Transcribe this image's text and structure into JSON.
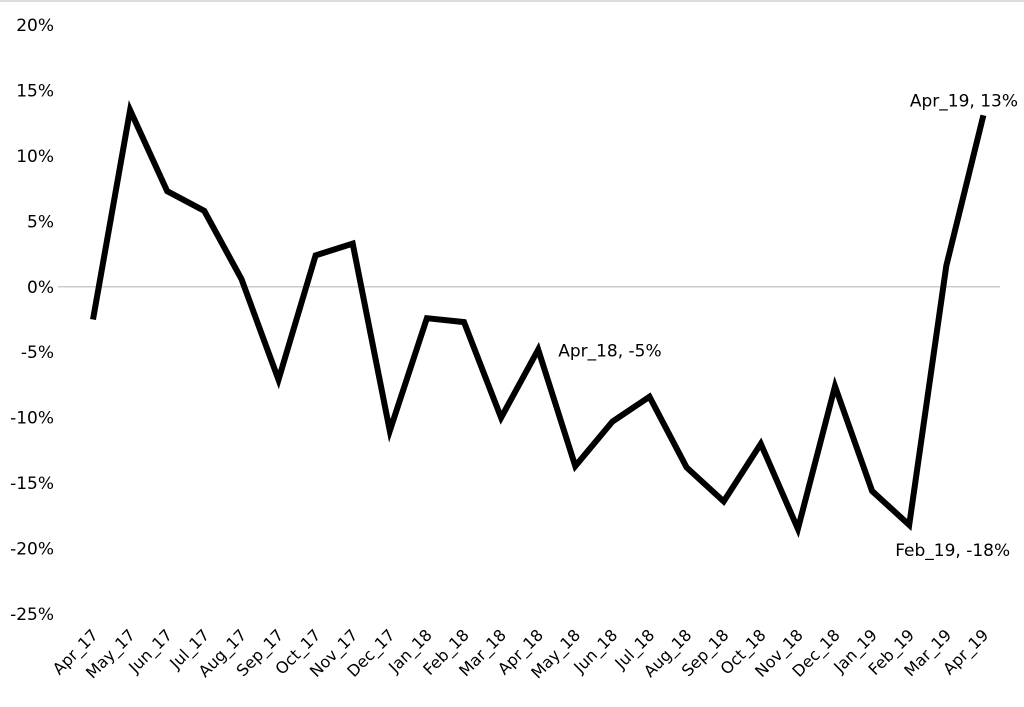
{
  "chart_data": {
    "type": "line",
    "title": "",
    "xlabel": "",
    "ylabel": "",
    "ylim": [
      -25,
      20
    ],
    "y_ticks": [
      "20%",
      "15%",
      "10%",
      "5%",
      "0%",
      "-5%",
      "-10%",
      "-15%",
      "-20%",
      "-25%"
    ],
    "y_tick_values": [
      20,
      15,
      10,
      5,
      0,
      -5,
      -10,
      -15,
      -20,
      -25
    ],
    "categories": [
      "Apr_17",
      "May_17",
      "Jun_17",
      "Jul_17",
      "Aug_17",
      "Sep_17",
      "Oct_17",
      "Nov_17",
      "Dec_17",
      "Jan_18",
      "Feb_18",
      "Mar_18",
      "Apr_18",
      "May_18",
      "Jun_18",
      "Jul_18",
      "Aug_18",
      "Sep_18",
      "Oct_18",
      "Nov_18",
      "Dec_18",
      "Jan_19",
      "Feb_19",
      "Mar_19",
      "Apr_19"
    ],
    "series": [
      {
        "values": [
          -2.5,
          13.5,
          7.3,
          5.8,
          0.6,
          -7.1,
          2.4,
          3.3,
          -11.0,
          -2.4,
          -2.7,
          -10.0,
          -4.8,
          -13.7,
          -10.3,
          -8.4,
          -13.8,
          -16.4,
          -12.0,
          -18.5,
          -7.6,
          -15.6,
          -18.2,
          1.6,
          13.1
        ],
        "color": "#000000"
      }
    ],
    "annotations": [
      {
        "text": "Apr_19, 13%",
        "category": "Apr_19",
        "value": 13.1
      },
      {
        "text": "Apr_18, -5%",
        "category": "Apr_18",
        "value": -4.8
      },
      {
        "text": "Feb_19, -18%",
        "category": "Feb_19",
        "value": -18.2
      }
    ],
    "grid": false,
    "zero_line": true,
    "colors": {
      "line": "#000000",
      "zero_line": "#cccccc",
      "background": "#ffffff"
    }
  }
}
